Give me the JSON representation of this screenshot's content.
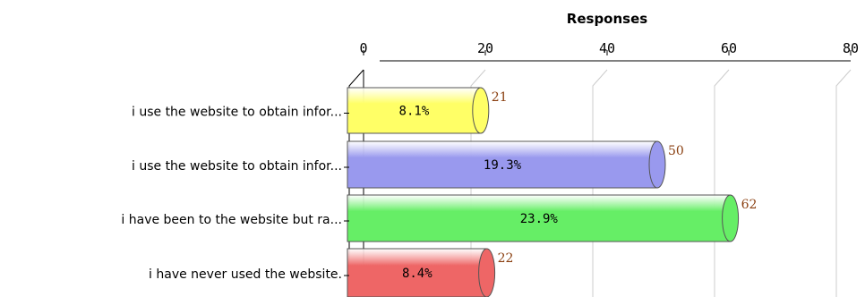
{
  "chart_data": {
    "type": "bar",
    "orientation": "horizontal",
    "title": "Responses",
    "xlim": [
      0,
      80
    ],
    "ticks": [
      "0",
      "20",
      "40",
      "60",
      "80"
    ],
    "grid": true,
    "categories": [
      "i use the website to obtain infor...",
      "i use the website to obtain infor...",
      "i have been to the website but ra...",
      "i have never used the website."
    ],
    "values": [
      21,
      50,
      62,
      22
    ],
    "value_labels": [
      "21",
      "50",
      "62",
      "22"
    ],
    "percent_labels": [
      "8.1%",
      "19.3%",
      "23.9%",
      "8.4%"
    ],
    "colors": [
      "#ffff66",
      "#9999ee",
      "#66ee66",
      "#ee6666"
    ]
  }
}
